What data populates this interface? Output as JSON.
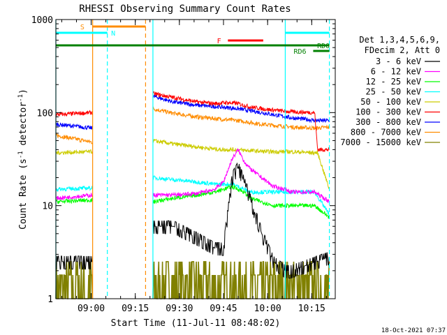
{
  "chart_data": {
    "type": "line",
    "title": "RHESSI Observing Summary Count Rates",
    "xlabel": "Start Time (11-Jul-11 08:48:02)",
    "ylabel_main": "Count Rate (s",
    "ylabel_sup1": "-1",
    "ylabel_mid": " detector",
    "ylabel_sup2": "-1",
    "ylabel_end": ")",
    "yscale": "log",
    "ylim": [
      1,
      1000
    ],
    "xlim_min": [
      0,
      95
    ],
    "y_ticks": [
      {
        "value": 1,
        "label": "1"
      },
      {
        "value": 10,
        "label": "10"
      },
      {
        "value": 100,
        "label": "100"
      },
      {
        "value": 1000,
        "label": "1000"
      }
    ],
    "x_ticks": [
      {
        "t": 12,
        "label": "09:00"
      },
      {
        "t": 27,
        "label": "09:15"
      },
      {
        "t": 42,
        "label": "09:30"
      },
      {
        "t": 57,
        "label": "09:45"
      },
      {
        "t": 72,
        "label": "10:00"
      },
      {
        "t": 87,
        "label": "10:15"
      }
    ],
    "legend_header": [
      "Det 1,3,4,5,6,9,",
      "FDecim 2, Att 0"
    ],
    "timestamp": "18-Oct-2021 07:37",
    "segments": [
      [
        0,
        12.5
      ],
      [
        33,
        93
      ]
    ],
    "series": [
      {
        "name": "3 - 6 keV",
        "color": "#000000",
        "t": [
          0,
          4,
          8,
          12.5,
          33,
          40,
          48,
          54,
          57,
          60,
          62,
          64,
          66,
          70,
          74,
          78,
          80
        ],
        "values": [
          2.5,
          2.5,
          2.5,
          2.5,
          6,
          6,
          4.5,
          3.5,
          3.5,
          20,
          26,
          18,
          12,
          5,
          2.5,
          2,
          2
        ],
        "t2": [
          80,
          93
        ],
        "v2": [
          2.0,
          2.8
        ]
      },
      {
        "name": "6 - 12 keV",
        "color": "#ff00ff",
        "t": [
          0,
          12.5,
          33,
          40,
          48,
          54,
          57,
          60,
          62,
          64,
          66,
          70,
          74,
          78,
          80,
          88,
          93
        ],
        "values": [
          12,
          13,
          13,
          13,
          13.5,
          15,
          18,
          32,
          40,
          30,
          25,
          20,
          16,
          15,
          14,
          14,
          11
        ],
        "t2": [],
        "v2": []
      },
      {
        "name": "12 - 25 keV",
        "color": "#00ff00",
        "t": [
          0,
          12.5,
          33,
          40,
          48,
          54,
          57,
          60,
          62,
          64,
          66,
          70,
          74,
          78,
          80,
          88,
          93
        ],
        "values": [
          11,
          11.5,
          11,
          12,
          13,
          14,
          15,
          16,
          15,
          14,
          12,
          11,
          10,
          10,
          10,
          10,
          7.5
        ],
        "t2": [],
        "v2": []
      },
      {
        "name": "25 - 50 keV",
        "color": "#00ffff",
        "t": [
          0,
          12.5,
          33,
          40,
          48,
          54,
          57,
          60,
          62,
          64,
          66,
          70,
          74,
          78,
          80,
          88,
          93
        ],
        "values": [
          15,
          15.5,
          20,
          19,
          18,
          17,
          17,
          17,
          16,
          15,
          14,
          14,
          14,
          14,
          14,
          14,
          8
        ],
        "t2": [],
        "v2": []
      },
      {
        "name": "50 - 100 keV",
        "color": "#cccc00",
        "t": [
          0,
          12.5,
          33,
          40,
          50,
          56,
          60,
          66,
          72,
          80,
          88,
          89,
          93
        ],
        "values": [
          37,
          38,
          50,
          46,
          42,
          40,
          40,
          39,
          38,
          38,
          37,
          37,
          15
        ],
        "t2": [],
        "v2": []
      },
      {
        "name": "100 - 300 keV",
        "color": "#ff0000",
        "t": [
          0,
          12.5,
          33,
          40,
          48,
          54,
          58,
          62,
          66,
          72,
          80,
          88,
          89,
          93
        ],
        "values": [
          95,
          100,
          160,
          145,
          130,
          125,
          128,
          125,
          115,
          108,
          102,
          100,
          40,
          40
        ],
        "t2": [],
        "v2": []
      },
      {
        "name": "300 - 800 keV",
        "color": "#0000ff",
        "t": [
          0,
          12.5,
          33,
          40,
          48,
          56,
          62,
          70,
          80,
          89
        ],
        "values": [
          75,
          68,
          150,
          130,
          120,
          115,
          110,
          100,
          88,
          82
        ],
        "t2": [],
        "v2": []
      },
      {
        "name": "800 - 7000 keV",
        "color": "#ff8c00",
        "t": [
          0,
          12.5,
          33,
          40,
          48,
          56,
          62,
          70,
          80,
          88,
          93
        ],
        "values": [
          57,
          48,
          110,
          98,
          90,
          85,
          82,
          75,
          70,
          68,
          70
        ],
        "t2": [],
        "v2": []
      },
      {
        "name": "7000 - 15000 keV",
        "color": "#808000",
        "t": [
          0,
          12.5,
          33,
          93
        ],
        "values": [
          1.6,
          1.6,
          1.8,
          1.8
        ],
        "t2": [],
        "v2": []
      }
    ],
    "flag_bars": [
      {
        "label": "S",
        "color": "#ff8c00",
        "t0": 12.5,
        "t1": 30.5,
        "y": 38,
        "label_t": 9
      },
      {
        "label": "N",
        "color": "#00ffff",
        "t0": 0,
        "t1": 17.5,
        "y": 47,
        "label_t": 19.5
      },
      {
        "label": "N",
        "color": "#00ffff",
        "t0": 78,
        "t1": 93,
        "y": 47,
        "label_t": null
      },
      {
        "label": "F",
        "color": "#ff0000",
        "t0": 58.5,
        "t1": 70.5,
        "y": 58,
        "label_t": 55.5
      },
      {
        "label": "RD0",
        "color": "#008000",
        "t0": 0,
        "t1": 93,
        "y": 65,
        "label_t": 91
      },
      {
        "label": "RD6",
        "color": "#008000",
        "t0": 87.5,
        "t1": 93,
        "y": 73,
        "label_t": 83
      }
    ],
    "vlines": [
      {
        "t": 0,
        "color": "#00ffff",
        "dash": false
      },
      {
        "t": 12.5,
        "color": "#ff8c00",
        "dash": false
      },
      {
        "t": 17.5,
        "color": "#00ffff",
        "dash": true
      },
      {
        "t": 30.5,
        "color": "#ff8c00",
        "dash": true
      },
      {
        "t": 33,
        "color": "#00ffff",
        "dash": false
      },
      {
        "t": 78,
        "color": "#00ffff",
        "dash": false
      },
      {
        "t": 93,
        "color": "#00ffff",
        "dash": true
      }
    ]
  }
}
